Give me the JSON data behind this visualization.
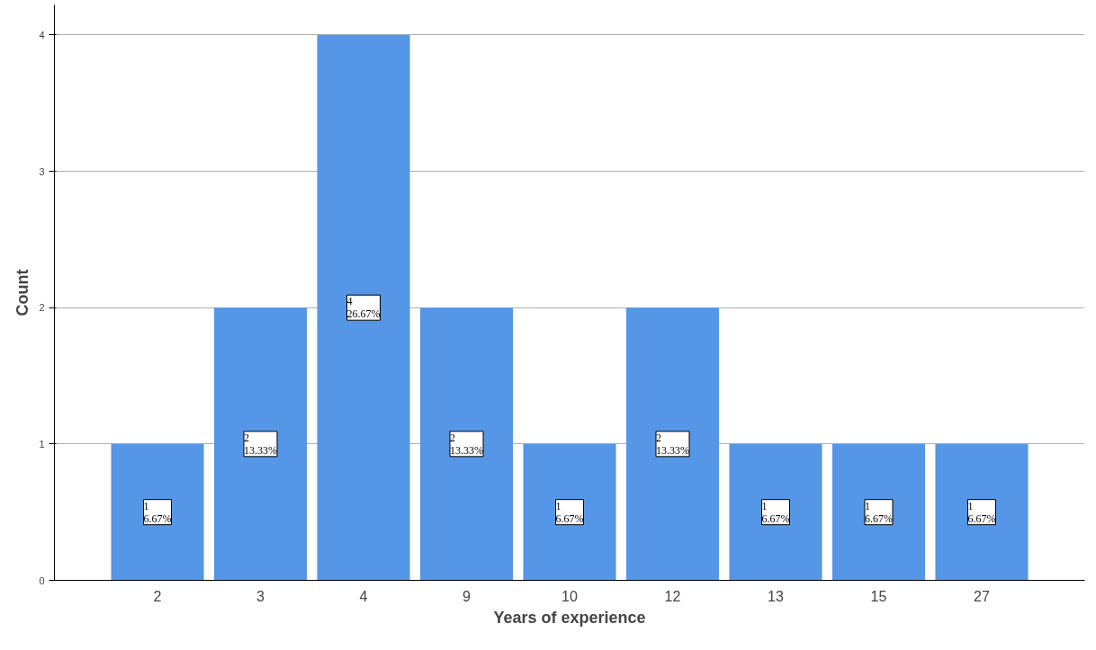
{
  "chart_data": {
    "type": "bar",
    "xlabel": "Years of experience",
    "ylabel": "Count",
    "categories": [
      "2",
      "3",
      "4",
      "9",
      "10",
      "12",
      "13",
      "15",
      "27"
    ],
    "values": [
      1,
      2,
      4,
      2,
      1,
      2,
      1,
      1,
      1
    ],
    "value_labels": [
      "1\n6.67%",
      "2\n13.33%",
      "4\n26.67%",
      "2\n13.33%",
      "1\n6.67%",
      "2\n13.33%",
      "1\n6.67%",
      "1\n6.67%",
      "1\n6.67%"
    ],
    "color": "#5596e6",
    "ylim": [
      0,
      4.22
    ],
    "yticks": [
      0,
      1,
      2,
      3,
      4
    ],
    "grid": "y"
  }
}
